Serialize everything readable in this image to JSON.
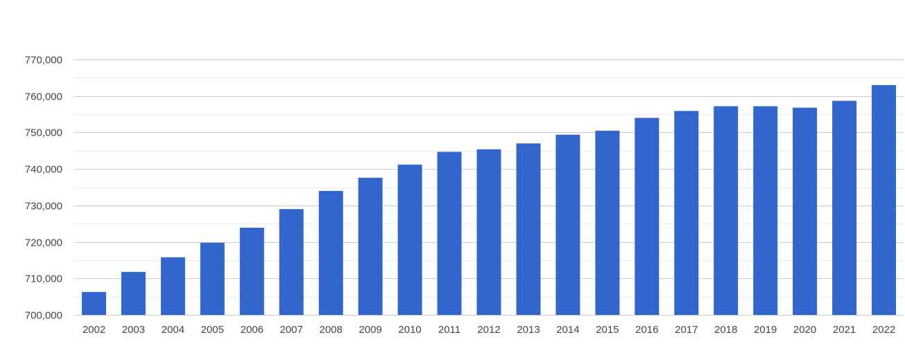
{
  "chart_data": {
    "type": "bar",
    "categories": [
      "2002",
      "2003",
      "2004",
      "2005",
      "2006",
      "2007",
      "2008",
      "2009",
      "2010",
      "2011",
      "2012",
      "2013",
      "2014",
      "2015",
      "2016",
      "2017",
      "2018",
      "2019",
      "2020",
      "2021",
      "2022"
    ],
    "values": [
      706300,
      711800,
      715800,
      719800,
      723900,
      729000,
      734000,
      737600,
      741200,
      744700,
      745400,
      747000,
      749400,
      750500,
      754000,
      755900,
      757200,
      757200,
      756800,
      758700,
      763000
    ],
    "ylim": [
      700000,
      770000
    ],
    "yticks": [
      700000,
      710000,
      720000,
      730000,
      740000,
      750000,
      760000,
      770000
    ],
    "ytick_labels": [
      "700,000",
      "710,000",
      "720,000",
      "730,000",
      "740,000",
      "750,000",
      "760,000",
      "770,000"
    ],
    "bar_color": "#3366cc",
    "grid": true,
    "major_grid_color": "#cccccc",
    "minor_grid_color": "#ebebeb",
    "legend": "none"
  }
}
